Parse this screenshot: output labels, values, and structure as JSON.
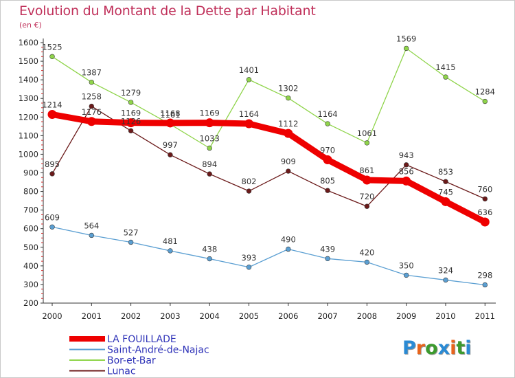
{
  "title": "Evolution du Montant de la Dette par Habitant",
  "unit": "(en €)",
  "logo": {
    "text": "Proxiti",
    "letter_colors": [
      "#2a8ad4",
      "#e8641c",
      "#3c9a2e",
      "#2a8ad4",
      "#e8641c",
      "#3c9a2e",
      "#2a8ad4"
    ]
  },
  "chart_data": {
    "type": "line",
    "x": [
      "2000",
      "2001",
      "2002",
      "2003",
      "2004",
      "2005",
      "2006",
      "2007",
      "2008",
      "2009",
      "2010",
      "2011"
    ],
    "ylim": [
      200,
      1600
    ],
    "yticks": [
      200,
      300,
      400,
      500,
      600,
      700,
      800,
      900,
      1000,
      1100,
      1200,
      1300,
      1400,
      1500,
      1600
    ],
    "grid": false,
    "legend_position": "bottom-left",
    "series": [
      {
        "name": "LA FOUILLADE",
        "color": "#ee0000",
        "values": [
          1214,
          1176,
          1169,
          1168,
          1169,
          1164,
          1112,
          970,
          861,
          856,
          745,
          636
        ]
      },
      {
        "name": "Saint-André-de-Najac",
        "color": "#5b9fd2",
        "values": [
          609,
          564,
          527,
          481,
          438,
          393,
          490,
          439,
          420,
          350,
          324,
          298
        ]
      },
      {
        "name": "Bor-et-Bar",
        "color": "#8fd44a",
        "values": [
          1525,
          1387,
          1279,
          1161,
          1033,
          1401,
          1302,
          1164,
          1061,
          1569,
          1415,
          1284
        ]
      },
      {
        "name": "Lunac",
        "color": "#6b1a1a",
        "values": [
          895,
          1258,
          1126,
          997,
          894,
          802,
          909,
          805,
          720,
          943,
          853,
          760
        ]
      }
    ]
  }
}
